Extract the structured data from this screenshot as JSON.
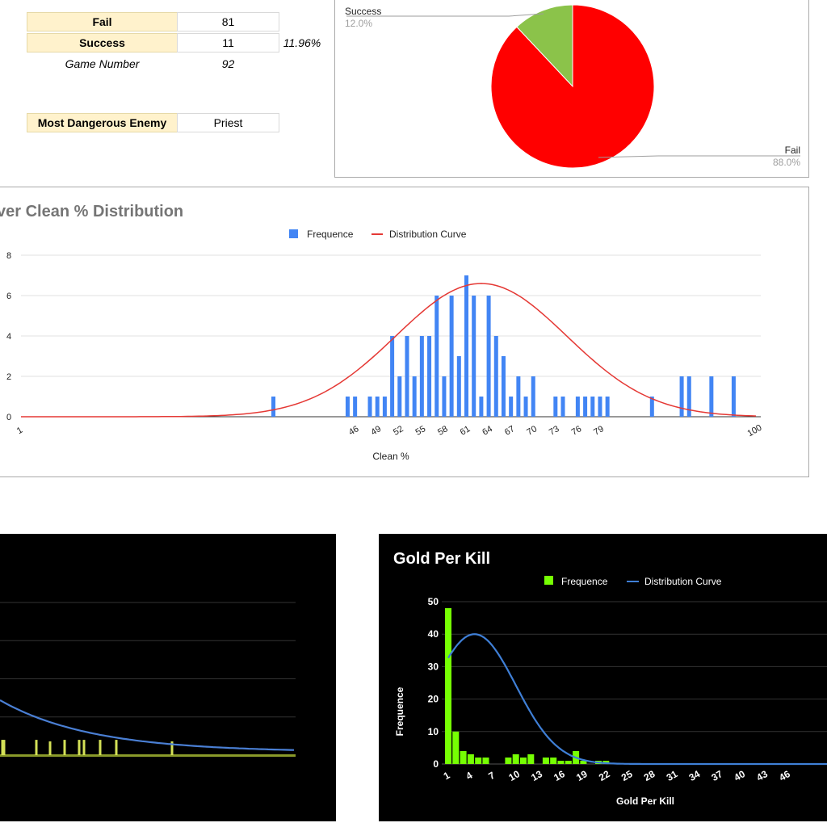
{
  "stats": {
    "fail_label": "Fail",
    "fail_value": "81",
    "success_label": "Success",
    "success_value": "11",
    "success_rate": "11.96%",
    "game_number_label": "Game Number",
    "game_number_value": "92",
    "dangerous_label": "Most Dangerous Enemy",
    "dangerous_value": "Priest"
  },
  "chart_data": [
    {
      "type": "pie",
      "title": "",
      "slices": [
        {
          "label": "Success",
          "value": 12.0,
          "display": "12.0%",
          "color": "#8bc34a"
        },
        {
          "label": "Fail",
          "value": 88.0,
          "display": "88.0%",
          "color": "#ff0000"
        }
      ]
    },
    {
      "type": "bar",
      "title": "ver Clean % Distribution",
      "xlabel": "Clean %",
      "ylabel": "",
      "legend": [
        "Frequence",
        "Distribution Curve"
      ],
      "legend_position": "top",
      "xlim": [
        1,
        100
      ],
      "ylim": [
        0,
        8
      ],
      "y_ticks": [
        0,
        2,
        4,
        6,
        8
      ],
      "x_tick_labels": [
        "1",
        "46",
        "49",
        "52",
        "55",
        "58",
        "61",
        "64",
        "67",
        "70",
        "73",
        "76",
        "79",
        "100"
      ],
      "bar_color": "#4285f4",
      "curve_color": "#e53935",
      "x": [
        35,
        45,
        46,
        48,
        49,
        50,
        51,
        52,
        53,
        54,
        55,
        56,
        57,
        58,
        59,
        60,
        61,
        62,
        63,
        64,
        65,
        66,
        67,
        68,
        69,
        70,
        73,
        74,
        76,
        77,
        78,
        79,
        80,
        86,
        90,
        91,
        94,
        97
      ],
      "values": [
        1,
        1,
        1,
        1,
        1,
        1,
        4,
        2,
        4,
        2,
        4,
        4,
        6,
        2,
        6,
        3,
        7,
        6,
        1,
        6,
        4,
        3,
        1,
        2,
        1,
        2,
        1,
        1,
        1,
        1,
        1,
        1,
        1,
        1,
        2,
        2,
        2,
        2
      ],
      "curve": {
        "mean": 63,
        "sd": 11.5,
        "peak": 6.6
      }
    },
    {
      "type": "bar",
      "title": "",
      "xlabel": "",
      "ylabel": "",
      "bar_color": "#d4e157",
      "curve_color": "#4a7fd4",
      "curve_start": 0.36,
      "curve_end": 0.02,
      "spike_heights": [
        0.1,
        0.1,
        0.1,
        0.1,
        0.1,
        0.1,
        0.1,
        0.09,
        0.09,
        0.1
      ],
      "ylim": [
        0,
        1
      ]
    },
    {
      "type": "bar",
      "title": "Gold Per Kill",
      "xlabel": "Gold Per Kill",
      "ylabel": "Frequence",
      "legend": [
        "Frequence",
        "Distribution Curve"
      ],
      "legend_position": "top",
      "ylim": [
        0,
        50
      ],
      "y_ticks": [
        0,
        10,
        20,
        30,
        40,
        50
      ],
      "x_tick_labels": [
        "1",
        "4",
        "7",
        "10",
        "13",
        "16",
        "19",
        "22",
        "25",
        "28",
        "31",
        "34",
        "37",
        "40",
        "43",
        "46"
      ],
      "bar_color": "#76ff03",
      "curve_color": "#3f7fd6",
      "values": [
        48,
        10,
        4,
        3,
        2,
        2,
        0,
        0,
        2,
        3,
        2,
        3,
        0,
        2,
        2,
        1,
        1,
        4,
        1,
        0,
        1,
        1
      ],
      "curve": {
        "mean": 4.5,
        "sd": 5.5,
        "peak": 40
      }
    }
  ]
}
